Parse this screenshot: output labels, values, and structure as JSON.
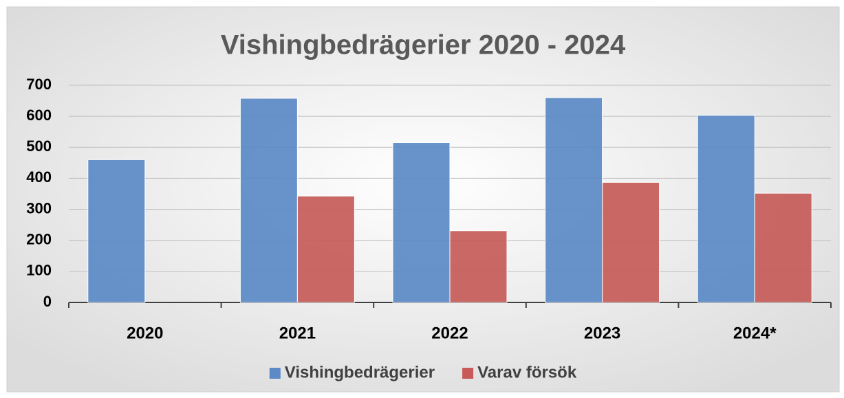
{
  "chart_data": {
    "type": "bar",
    "title": "Vishingbedrägerier 2020 - 2024",
    "categories": [
      "2020",
      "2021",
      "2022",
      "2023",
      "2024*"
    ],
    "series": [
      {
        "name": "Vishingbedrägerier",
        "color": "#5b8ac6",
        "values": [
          460,
          658,
          515,
          660,
          603
        ]
      },
      {
        "name": "Varav försök",
        "color": "#c65b59",
        "values": [
          null,
          343,
          231,
          387,
          352
        ]
      }
    ],
    "ylim": [
      0,
      700
    ],
    "yticks": [
      0,
      100,
      200,
      300,
      400,
      500,
      600,
      700
    ],
    "grid": true,
    "legend": "bottom"
  }
}
